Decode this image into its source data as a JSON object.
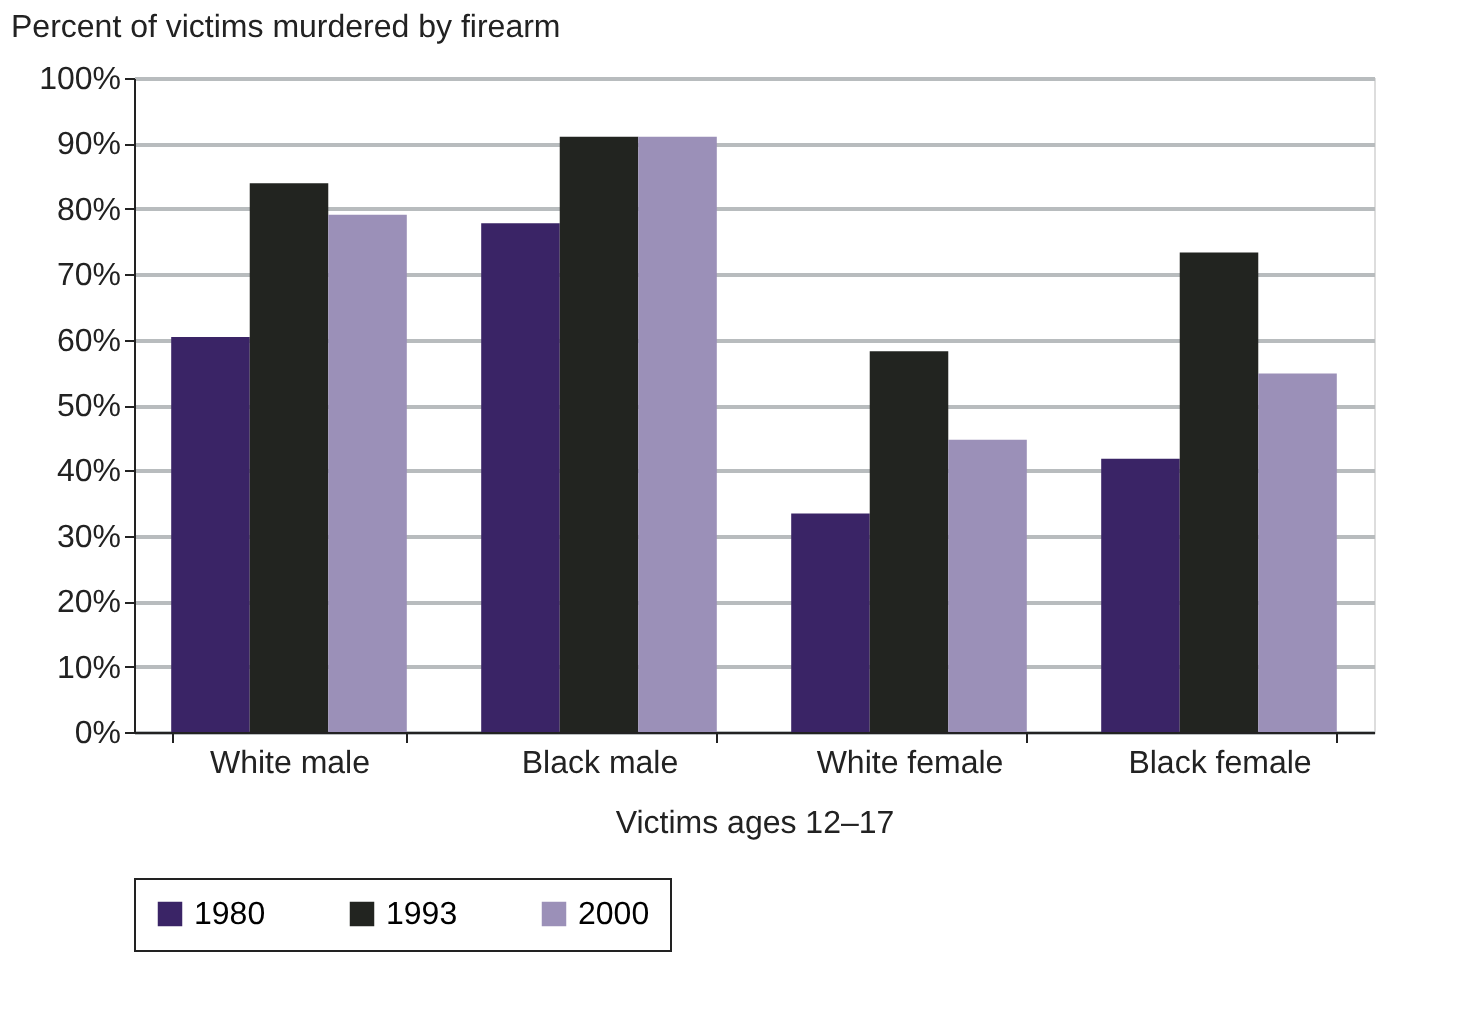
{
  "chart_data": {
    "type": "bar",
    "ylabel": "Percent of victims murdered by firearm",
    "xlabel": "Victims ages 12–17",
    "categories": [
      "White male",
      "Black male",
      "White female",
      "Black female"
    ],
    "series": [
      {
        "name": "1980",
        "color": "#3a2466",
        "values": [
          60.4,
          77.8,
          33.4,
          41.8
        ]
      },
      {
        "name": "1993",
        "color": "#222420",
        "values": [
          83.9,
          91.0,
          58.2,
          73.3
        ]
      },
      {
        "name": "2000",
        "color": "#9b90b8",
        "values": [
          79.1,
          91.0,
          44.7,
          54.8
        ]
      }
    ],
    "ylim": [
      0,
      100
    ],
    "yticks": [
      {
        "value": 0,
        "label": "0%"
      },
      {
        "value": 10,
        "label": "10%"
      },
      {
        "value": 20,
        "label": "20%"
      },
      {
        "value": 30,
        "label": "30%"
      },
      {
        "value": 40,
        "label": "40%"
      },
      {
        "value": 50,
        "label": "50%"
      },
      {
        "value": 60,
        "label": "60%"
      },
      {
        "value": 70,
        "label": "70%"
      },
      {
        "value": 80,
        "label": "80%"
      },
      {
        "value": 90,
        "label": "90%"
      },
      {
        "value": 100,
        "label": "100%"
      }
    ],
    "grid": "y",
    "legend": "bottom"
  }
}
